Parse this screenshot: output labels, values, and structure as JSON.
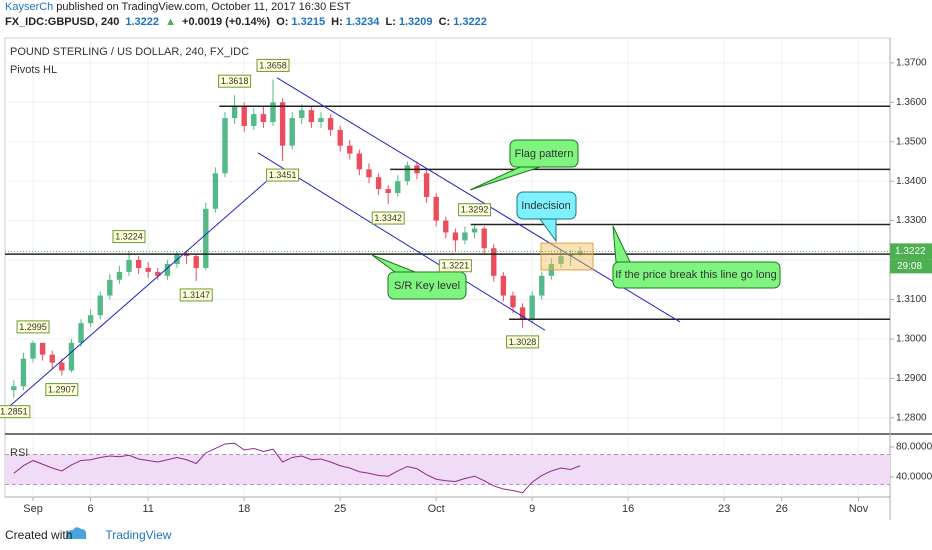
{
  "header": {
    "author": "KayserCh",
    "published": "published on TradingView.com, October 11, 2017 16:30 EST",
    "symbol": "FX_IDC:GBPUSD, 240",
    "price": "1.3222",
    "arrow": "▲",
    "change": "+0.0019 (+0.14%)",
    "ohlc": [
      {
        "label": "O:",
        "value": "1.3215"
      },
      {
        "label": "H:",
        "value": "1.3234"
      },
      {
        "label": "L:",
        "value": "1.3209"
      },
      {
        "label": "C:",
        "value": "1.3222"
      }
    ]
  },
  "footer": {
    "created": "Created with",
    "brand": "TradingView"
  },
  "chart_data": [
    {
      "type": "candlestick",
      "title": "POUND STERLING / US DOLLAR, 240, FX_IDC",
      "subtitle": "Pivots HL",
      "x": [
        -1,
        -0.5,
        0,
        0.5,
        1,
        1.5,
        2,
        2.5,
        3,
        3.5,
        4,
        4.5,
        5,
        5.5,
        6,
        6.5,
        7,
        7.5,
        8,
        8.5,
        9,
        9.5,
        10,
        10.5,
        11,
        11.5,
        12,
        12.5,
        13,
        13.5,
        14,
        14.5,
        15,
        15.5,
        16,
        16.5,
        17,
        17.5,
        18,
        18.5,
        19,
        19.5,
        20,
        20.5,
        21,
        21.5,
        22,
        22.5,
        23,
        23.5,
        24,
        24.5,
        25,
        25.5,
        26,
        26.5,
        27,
        27.5,
        28,
        28.5
      ],
      "open": [
        1.287,
        1.288,
        1.295,
        1.299,
        1.296,
        1.294,
        1.292,
        1.299,
        1.304,
        1.306,
        1.311,
        1.315,
        1.317,
        1.32,
        1.318,
        1.317,
        1.316,
        1.319,
        1.3215,
        1.321,
        1.318,
        1.333,
        1.342,
        1.356,
        1.359,
        1.354,
        1.357,
        1.355,
        1.36,
        1.349,
        1.356,
        1.358,
        1.355,
        1.356,
        1.353,
        1.349,
        1.347,
        1.343,
        1.341,
        1.338,
        1.337,
        1.34,
        1.344,
        1.342,
        1.336,
        1.33,
        1.327,
        1.325,
        1.327,
        1.328,
        1.323,
        1.316,
        1.311,
        1.308,
        1.305,
        1.311,
        1.316,
        1.319,
        1.321,
        1.3215
      ],
      "high": [
        1.2895,
        1.2965,
        1.2995,
        1.299,
        1.297,
        1.295,
        1.3,
        1.305,
        1.3075,
        1.312,
        1.3165,
        1.3185,
        1.3224,
        1.321,
        1.3195,
        1.318,
        1.32,
        1.322,
        1.3225,
        1.3215,
        1.3345,
        1.3435,
        1.3575,
        1.3618,
        1.36,
        1.3585,
        1.359,
        1.3658,
        1.361,
        1.3575,
        1.3595,
        1.359,
        1.3575,
        1.357,
        1.354,
        1.3505,
        1.348,
        1.3445,
        1.342,
        1.339,
        1.3415,
        1.345,
        1.345,
        1.343,
        1.337,
        1.331,
        1.328,
        1.3285,
        1.3292,
        1.3285,
        1.324,
        1.317,
        1.312,
        1.309,
        1.312,
        1.317,
        1.3205,
        1.3225,
        1.3225,
        1.3234
      ],
      "low": [
        1.2851,
        1.287,
        1.294,
        1.2945,
        1.2925,
        1.2907,
        1.2915,
        1.298,
        1.303,
        1.305,
        1.31,
        1.314,
        1.316,
        1.3165,
        1.3155,
        1.315,
        1.315,
        1.318,
        1.319,
        1.3147,
        1.3175,
        1.332,
        1.341,
        1.3545,
        1.3525,
        1.353,
        1.3535,
        1.354,
        1.3451,
        1.348,
        1.3545,
        1.3535,
        1.3535,
        1.3515,
        1.3475,
        1.3455,
        1.3415,
        1.3395,
        1.3365,
        1.3342,
        1.336,
        1.339,
        1.3405,
        1.3345,
        1.3285,
        1.3255,
        1.3221,
        1.324,
        1.3255,
        1.3215,
        1.3145,
        1.3095,
        1.3065,
        1.3028,
        1.304,
        1.31,
        1.315,
        1.318,
        1.3185,
        1.3209
      ],
      "close": [
        1.288,
        1.295,
        1.299,
        1.296,
        1.294,
        1.292,
        1.299,
        1.304,
        1.306,
        1.311,
        1.315,
        1.317,
        1.32,
        1.318,
        1.317,
        1.316,
        1.319,
        1.3215,
        1.321,
        1.318,
        1.333,
        1.342,
        1.356,
        1.359,
        1.354,
        1.357,
        1.355,
        1.36,
        1.349,
        1.356,
        1.358,
        1.355,
        1.356,
        1.353,
        1.349,
        1.347,
        1.343,
        1.341,
        1.338,
        1.337,
        1.34,
        1.344,
        1.342,
        1.336,
        1.33,
        1.327,
        1.325,
        1.327,
        1.328,
        1.323,
        1.316,
        1.311,
        1.308,
        1.305,
        1.311,
        1.316,
        1.319,
        1.321,
        1.3215,
        1.3222
      ],
      "up_color": "#53b987",
      "down_color": "#eb4d5c",
      "xlim": [
        -1.46,
        44.64
      ],
      "xticks": [
        {
          "value": 0,
          "label": "Sep"
        },
        {
          "value": 3,
          "label": "6"
        },
        {
          "value": 6,
          "label": "11"
        },
        {
          "value": 11,
          "label": "18"
        },
        {
          "value": 16,
          "label": "25"
        },
        {
          "value": 21,
          "label": "Oct"
        },
        {
          "value": 26,
          "label": "9"
        },
        {
          "value": 31,
          "label": "16"
        },
        {
          "value": 36,
          "label": "23"
        },
        {
          "value": 39,
          "label": "26"
        },
        {
          "value": 43,
          "label": "Nov"
        }
      ],
      "ylim": [
        1.2764,
        1.3763
      ],
      "yticks": [
        {
          "value": 1.37,
          "label": "1.3700"
        },
        {
          "value": 1.36,
          "label": "1.3600"
        },
        {
          "value": 1.35,
          "label": "1.3500"
        },
        {
          "value": 1.34,
          "label": "1.3400"
        },
        {
          "value": 1.33,
          "label": "1.3300"
        },
        {
          "value": 1.32,
          "label": "1.3200"
        },
        {
          "value": 1.31,
          "label": "1.3100"
        },
        {
          "value": 1.3,
          "label": "1.3000"
        },
        {
          "value": 1.29,
          "label": "1.2900"
        },
        {
          "value": 1.28,
          "label": "1.2800"
        }
      ],
      "grid": true,
      "last_price": 1.3222,
      "last_color": "#4caf50",
      "countdown": "29:08",
      "pivots": [
        {
          "x": -1,
          "value": 1.2851,
          "side": "low"
        },
        {
          "x": 0,
          "value": 1.2995,
          "side": "high"
        },
        {
          "x": 1.5,
          "value": 1.2907,
          "side": "low"
        },
        {
          "x": 5,
          "value": 1.3224,
          "side": "high"
        },
        {
          "x": 8.5,
          "value": 1.3147,
          "side": "low"
        },
        {
          "x": 10.5,
          "value": 1.3618,
          "side": "high"
        },
        {
          "x": 12.5,
          "value": 1.3658,
          "side": "high"
        },
        {
          "x": 13,
          "value": 1.3451,
          "side": "low"
        },
        {
          "x": 18.5,
          "value": 1.3342,
          "side": "low"
        },
        {
          "x": 23,
          "value": 1.3292,
          "side": "high"
        },
        {
          "x": 22,
          "value": 1.3221,
          "side": "low"
        },
        {
          "x": 25.5,
          "value": 1.3028,
          "side": "low"
        }
      ],
      "levels": [
        {
          "x": 9.7,
          "value": 1.359
        },
        {
          "x": 18.6,
          "value": 1.343
        },
        {
          "x": 22.8,
          "value": 1.329
        },
        {
          "x": -1.46,
          "value": 1.3215
        },
        {
          "x": 24.8,
          "value": 1.305
        }
      ],
      "level_color": "#222222",
      "trendlines": [
        {
          "x": [
            12.71,
            33.7
          ],
          "y": [
            1.3662,
            1.3043
          ]
        },
        {
          "x": [
            11.72,
            26.67
          ],
          "y": [
            1.3472,
            1.3022
          ]
        },
        {
          "x": [
            -1.46,
            12.71
          ],
          "y": [
            1.2819,
            1.3423
          ]
        }
      ],
      "trend_color": "#2020c8",
      "box": {
        "x": [
          26.46,
          29.17
        ],
        "y": [
          1.3175,
          1.3243
        ]
      },
      "annotations": [
        "Flag pattern",
        "Indecision",
        "S/R Key level",
        "If the price break this line go long"
      ]
    },
    {
      "type": "line",
      "title": "RSI",
      "color": "#8e2a8e",
      "values": [
        45,
        55,
        62,
        57,
        52,
        48,
        56,
        62,
        63,
        66,
        68,
        67,
        69,
        64,
        62,
        60,
        63,
        66,
        63,
        58,
        72,
        78,
        84,
        85,
        76,
        78,
        74,
        77,
        60,
        66,
        68,
        63,
        64,
        60,
        55,
        52,
        47,
        45,
        42,
        41,
        48,
        54,
        51,
        43,
        37,
        35,
        34,
        38,
        41,
        35,
        28,
        24,
        22,
        19,
        33,
        42,
        48,
        52,
        50,
        55
      ],
      "ylim": [
        13.3,
        93.3
      ],
      "yticks": [
        {
          "value": 80,
          "label": "80.0000"
        },
        {
          "value": 40,
          "label": "40.0000"
        }
      ],
      "band": [
        30,
        70
      ],
      "band_color": "#f1dcf7"
    }
  ]
}
